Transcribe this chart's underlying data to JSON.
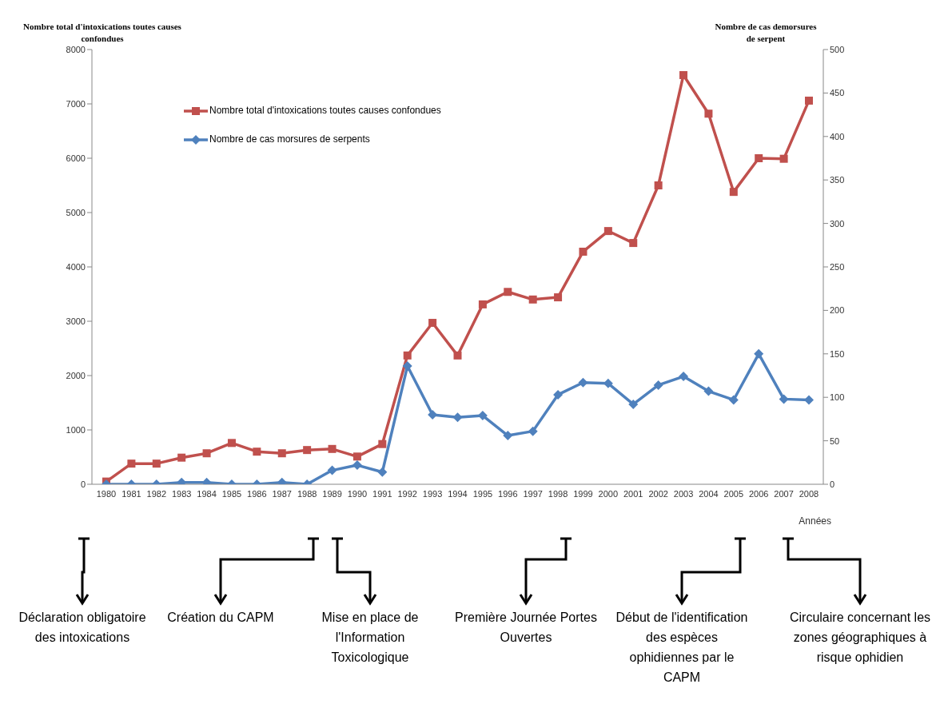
{
  "chart_data": {
    "type": "line",
    "ylabel": "Nombre total d'intoxications toutes causes confondues",
    "y2label": "Nombre de cas demorsures de serpent",
    "xlabel": "Années",
    "categories": [
      "1980",
      "1981",
      "1982",
      "1983",
      "1984",
      "1985",
      "1986",
      "1987",
      "1988",
      "1989",
      "1990",
      "1991",
      "1992",
      "1993",
      "1994",
      "1995",
      "1996",
      "1997",
      "1998",
      "1999",
      "2000",
      "2001",
      "2002",
      "2003",
      "2004",
      "2005",
      "2006",
      "2007",
      "2008"
    ],
    "series": [
      {
        "name": "Nombre total d'intoxications toutes causes confondues",
        "color": "#c0504d",
        "marker": "square",
        "values": [
          50,
          380,
          380,
          490,
          570,
          760,
          600,
          570,
          630,
          650,
          510,
          740,
          2370,
          2970,
          2370,
          3310,
          3540,
          3400,
          3440,
          4280,
          4660,
          4440,
          5500,
          7530,
          6820,
          5380,
          6000,
          5990,
          7060
        ]
      },
      {
        "name": "Nombre de cas morsures de serpents",
        "color": "#4f81bd",
        "marker": "diamond",
        "axis": "y2",
        "values": [
          0,
          0,
          0,
          2,
          2,
          0,
          0,
          2,
          0,
          16,
          22,
          14,
          136,
          80,
          77,
          79,
          56,
          61,
          103,
          117,
          116,
          92,
          114,
          124,
          107,
          97,
          150,
          98,
          97
        ]
      }
    ],
    "ylim": [
      0,
      8000
    ],
    "yticks": [
      0,
      1000,
      2000,
      3000,
      4000,
      5000,
      6000,
      7000,
      8000
    ],
    "y2lim": [
      0,
      500
    ],
    "y2ticks": [
      0,
      50,
      100,
      150,
      200,
      250,
      300,
      350,
      400,
      450,
      500
    ],
    "grid": false,
    "legend": "top left",
    "line_style": "solid",
    "annotations": [
      "Déclaration obligatoire des intoxications",
      "Création du CAPM",
      "Mise en place de l'Information Toxicologique",
      "Première Journée Portes Ouvertes",
      "Début de l'identification des espèces ophidiennes par le CAPM",
      "Circulaire concernant les zones géographiques à risque ophidien"
    ]
  }
}
